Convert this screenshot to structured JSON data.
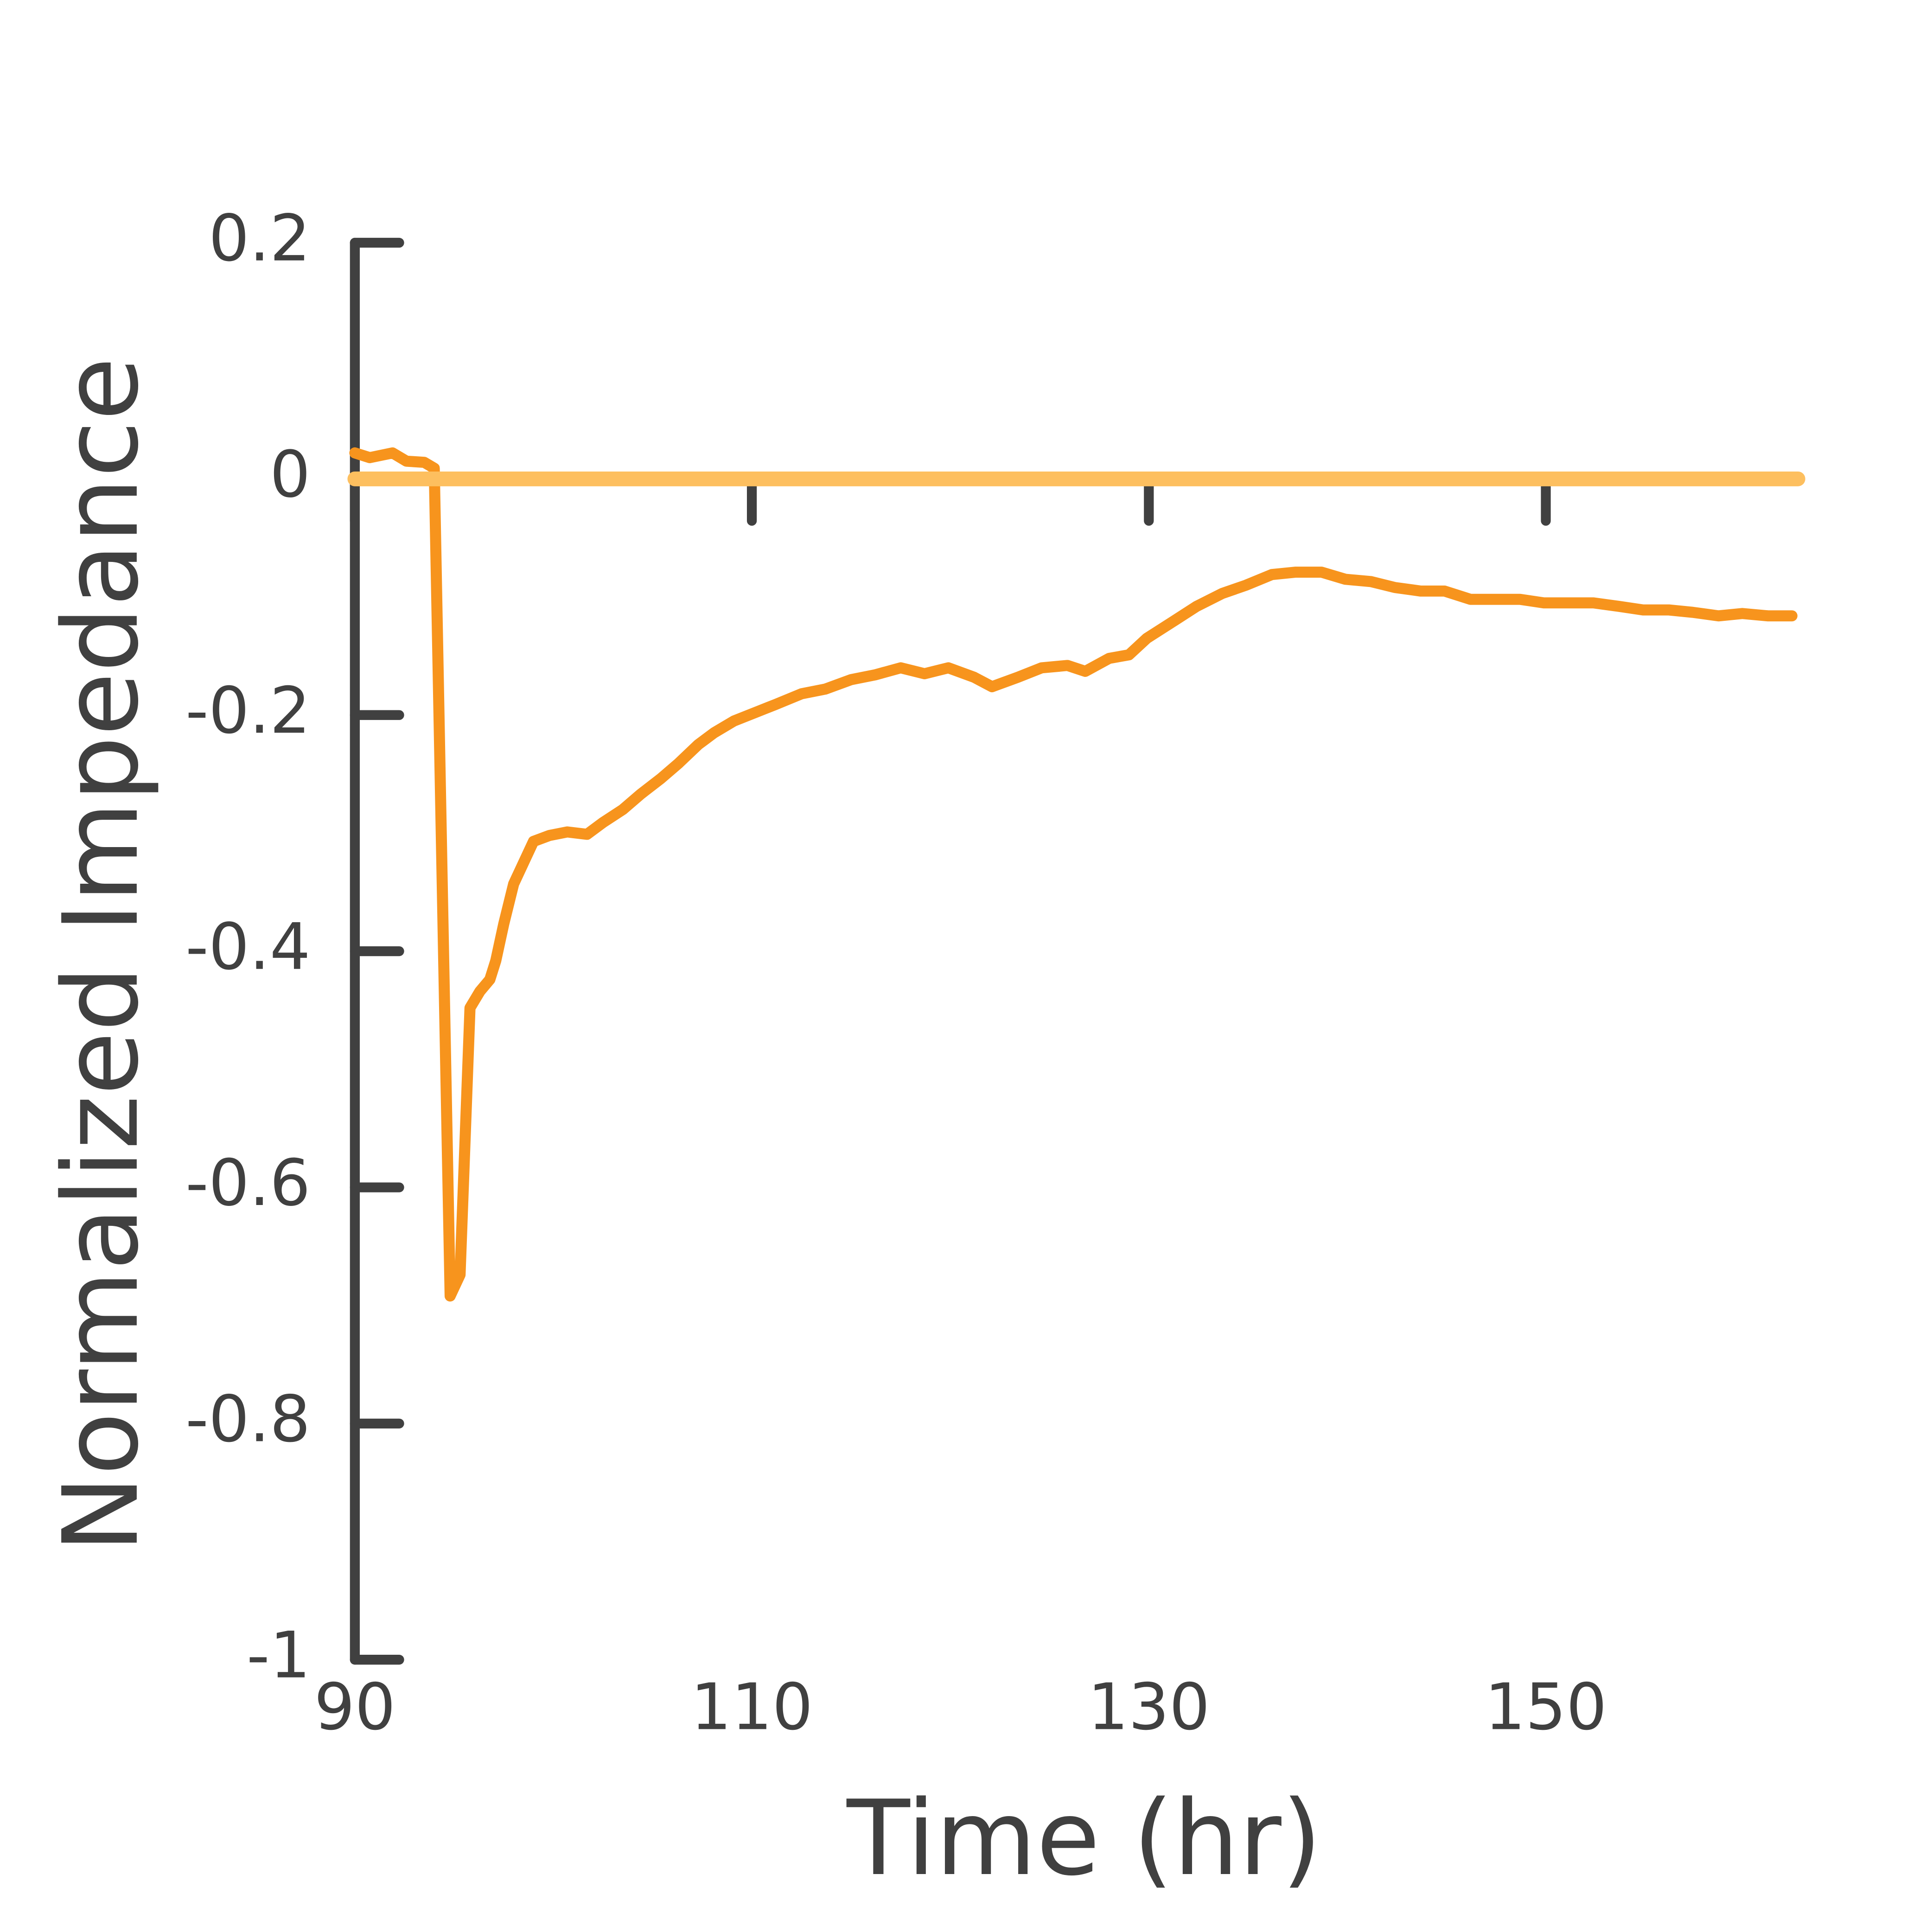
{
  "chart_data": {
    "type": "line",
    "x_label": "Time (hr)",
    "y_label": "Normalized Impedance",
    "xlim": [
      90,
      163
    ],
    "ylim": [
      -1,
      0.2
    ],
    "xticks": [
      90,
      110,
      130,
      150
    ],
    "yticks": [
      0.2,
      0,
      -0.2,
      -0.4,
      -0.6,
      -0.8,
      -1
    ],
    "series": [
      {
        "color": "#f7941d",
        "x": [
          90,
          90.75,
          91.9,
          92.6,
          93.5,
          94.0,
          94.8,
          95.3,
          95.8,
          96.3,
          96.8,
          97.1,
          97.5,
          98.0,
          98.5,
          99.0,
          99.8,
          100.7,
          101.7,
          102.5,
          103.5,
          104.4,
          105.4,
          106.3,
          107.3,
          108.1,
          109.1,
          110.3,
          111.2,
          112.5,
          113.7,
          115.0,
          116.2,
          117.5,
          118.7,
          119.9,
          121.2,
          122.1,
          123.4,
          124.6,
          125.9,
          126.8,
          128.0,
          129.0,
          129.9,
          131.2,
          132.4,
          133.7,
          134.9,
          136.2,
          137.4,
          138.7,
          139.9,
          141.2,
          142.4,
          143.7,
          144.9,
          146.2,
          147.4,
          148.7,
          149.9,
          151.2,
          152.4,
          153.7,
          154.9,
          156.2,
          157.4,
          158.7,
          159.9,
          161.2,
          162.4
        ],
        "values": [
          0.022,
          0.018,
          0.022,
          0.015,
          0.014,
          0.009,
          -0.692,
          -0.674,
          -0.448,
          -0.434,
          -0.424,
          -0.408,
          -0.377,
          -0.343,
          -0.325,
          -0.307,
          -0.302,
          -0.299,
          -0.301,
          -0.291,
          -0.28,
          -0.267,
          -0.254,
          -0.241,
          -0.225,
          -0.215,
          -0.205,
          -0.197,
          -0.191,
          -0.182,
          -0.178,
          -0.17,
          -0.166,
          -0.16,
          -0.165,
          -0.16,
          -0.168,
          -0.176,
          -0.168,
          -0.16,
          -0.158,
          -0.163,
          -0.152,
          -0.149,
          -0.135,
          -0.121,
          -0.108,
          -0.097,
          -0.09,
          -0.081,
          -0.079,
          -0.079,
          -0.085,
          -0.087,
          -0.092,
          -0.095,
          -0.095,
          -0.102,
          -0.102,
          -0.102,
          -0.105,
          -0.105,
          -0.105,
          -0.108,
          -0.111,
          -0.111,
          -0.113,
          -0.116,
          -0.114,
          -0.116,
          -0.116
        ]
      },
      {
        "color": "#fdbf5f",
        "x": [
          90,
          162.7
        ],
        "values": [
          0,
          0
        ]
      }
    ]
  }
}
